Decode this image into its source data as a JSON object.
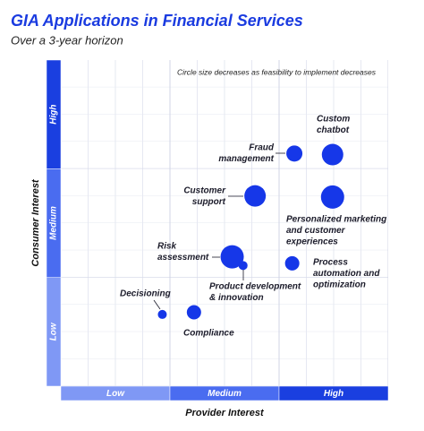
{
  "chart_data": {
    "type": "bubble",
    "title": "GIA Applications in Financial Services",
    "subtitle": "Over a 3-year horizon",
    "annotation": "Circle size decreases as feasibility to implement decreases",
    "x_label": "Provider Interest",
    "y_label": "Consumer Interest",
    "x_categories": [
      "Low",
      "Medium",
      "High"
    ],
    "y_categories": [
      "Low",
      "Medium",
      "High"
    ],
    "band_colors": [
      "#7f98f5",
      "#4a6cf0",
      "#1a3fe0"
    ],
    "xlim": [
      0,
      3
    ],
    "ylim": [
      0,
      3
    ],
    "color": "#1637e8",
    "labels": [
      [
        "Custom",
        "chatbot"
      ],
      [
        "Fraud",
        "management"
      ],
      [
        "Customer",
        "support"
      ],
      [
        "Personalized marketing",
        "and customer",
        "experiences"
      ],
      [
        "Risk",
        "assessment"
      ],
      [
        "Product development",
        "& innovation"
      ],
      [
        "Process",
        "automation and",
        "optimization"
      ],
      [
        "Decisioning"
      ],
      [
        "Compliance"
      ]
    ],
    "x": [
      2.49,
      2.14,
      1.78,
      2.49,
      1.57,
      1.67,
      2.12,
      0.93,
      1.22
    ],
    "y": [
      2.13,
      2.14,
      1.75,
      1.74,
      1.19,
      1.11,
      1.13,
      0.66,
      0.68
    ],
    "sizes": [
      12,
      9,
      12,
      13,
      13,
      5,
      8,
      5,
      8
    ]
  }
}
